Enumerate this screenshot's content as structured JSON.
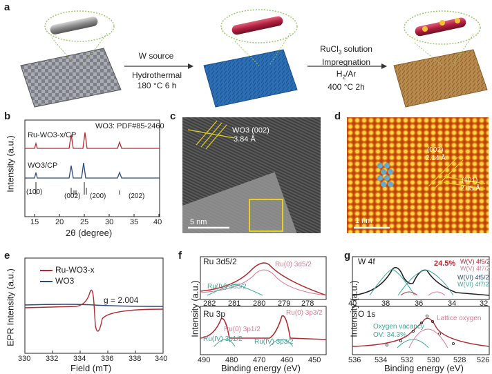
{
  "panels": {
    "a": {
      "label": "a",
      "step1": {
        "line1": "W source",
        "line2": "Hydrothermal",
        "line3": "180 °C  6 h"
      },
      "step2": {
        "line1a": "RuCl",
        "line1b": "3",
        "line1c": " solution",
        "line2": "Impregnation",
        "line3a": "H",
        "line3b": "2",
        "line3c": "/Ar",
        "line4": "400 °C  2h"
      }
    },
    "b": {
      "label": "b",
      "ylabel": "Intensity (a.u.)",
      "xlabel": "2θ (degree)",
      "series1": "Ru-WO3-x/CP",
      "series2": "WO3/CP",
      "ref": "WO3: PDF#85-2460",
      "peaks": [
        "(100)",
        "(002)",
        "(200)",
        "(202)"
      ],
      "xticks": [
        "15",
        "20",
        "25",
        "30",
        "35",
        "40"
      ]
    },
    "c": {
      "label": "c",
      "fringe": "WO3 (002)",
      "spacing": "3.84 Å",
      "scale": "5 nm"
    },
    "d": {
      "label": "d",
      "plane1": "(002)",
      "spacing1": "2.14 Å",
      "plane2": "(101)",
      "spacing2": "2.05 Å",
      "scale": "1 nm"
    },
    "e": {
      "label": "e",
      "ylabel": "EPR Intensity (a.u.)",
      "xlabel": "Field (mT)",
      "series1": "Ru-WO3-x",
      "series2": "WO3",
      "gvalue": "g = 2.004",
      "xticks": [
        "330",
        "332",
        "334",
        "336",
        "338",
        "340"
      ]
    },
    "f": {
      "label": "f",
      "ylabel": "Intensity (a.u.)",
      "xlabel": "Binding energy (eV)",
      "top_title": "Ru 3d5/2",
      "top_ticks": [
        "282",
        "281",
        "280",
        "279",
        "278"
      ],
      "top_ru0": "Ru(0) 3d5/2",
      "top_ru4": "Ru(IV) 3d5/2",
      "bot_title": "Ru 3p",
      "bot_ticks": [
        "490",
        "480",
        "470",
        "460",
        "450"
      ],
      "bot_ru0a": "Ru(0) 3p1/2",
      "bot_ru0b": "Ru(0) 3p3/2",
      "bot_ru4a": "Ru(IV) 3p1/2",
      "bot_ru4b": "Ru(IV) 3p3/2"
    },
    "g": {
      "label": "g",
      "ylabel": "Intensity (a.u.)",
      "xlabel": "Binding energy (eV)",
      "top_title": "W 4f",
      "top_ticks": [
        "40",
        "38",
        "36",
        "34",
        "32"
      ],
      "pct": "24.5%",
      "w5a": "W(V) 4f5/2",
      "w5b": "W(V) 4f7/2",
      "w6a": "W(VI) 4f5/2",
      "w6b": "W(VI) 4f7/2",
      "bot_title": "O 1s",
      "bot_ticks": [
        "536",
        "534",
        "532",
        "530",
        "528",
        "526"
      ],
      "ov": "Oxygen vacancy",
      "ovpct": "OV: 34.3%",
      "lattice": "Lattice oxygen"
    }
  },
  "colors": {
    "red": "#b22a30",
    "blue": "#2a4a7f",
    "ru0": "#e07890",
    "ru4": "#3aa89a"
  }
}
